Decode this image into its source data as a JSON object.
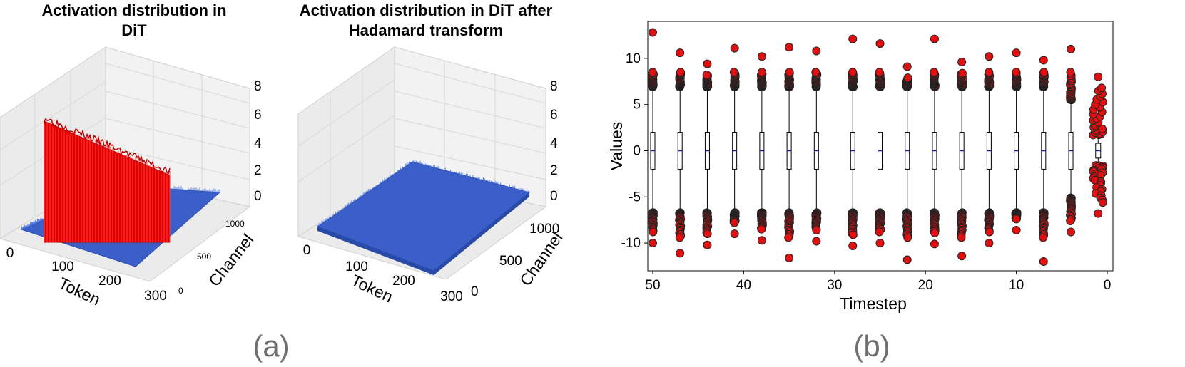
{
  "panel_a": {
    "label": "(a)",
    "left": {
      "title_line1": "Activation distribution in",
      "title_line2": "DiT",
      "token_label": "Token",
      "channel_label": "Channel",
      "token_ticks": [
        "0",
        "100",
        "200",
        "300"
      ],
      "channel_ticks": [
        "0",
        "500",
        "1000"
      ],
      "z_ticks": [
        "0",
        "2",
        "4",
        "6",
        "8"
      ]
    },
    "right": {
      "title_line1": "Activation distribution in DiT after",
      "title_line2": "Hadamard transform",
      "token_label": "Token",
      "channel_label": "Channel",
      "token_ticks": [
        "0",
        "100",
        "200",
        "300"
      ],
      "channel_ticks": [
        "0",
        "500",
        "1000"
      ],
      "z_ticks": [
        "0",
        "2",
        "4",
        "6",
        "8"
      ]
    }
  },
  "panel_b": {
    "label": "(b)"
  },
  "chart_data": [
    {
      "type": "surface3d",
      "title": "Activation distribution in DiT",
      "xlabel": "Token",
      "ylabel": "Channel",
      "zlabel": "",
      "xlim": [
        0,
        300
      ],
      "ylim": [
        0,
        1150
      ],
      "zlim": [
        0,
        8
      ],
      "base_level": 0.3,
      "outlier_band": {
        "token_range": [
          25,
          290
        ],
        "channel": 1000,
        "value": 5.5
      },
      "colors": {
        "base": "#3b5fc9",
        "outlier": "#e00000"
      }
    },
    {
      "type": "surface3d",
      "title": "Activation distribution in DiT after Hadamard transform",
      "xlabel": "Token",
      "ylabel": "Channel",
      "zlabel": "",
      "xlim": [
        0,
        300
      ],
      "ylim": [
        0,
        1150
      ],
      "zlim": [
        0,
        8
      ],
      "base_level": 0.9,
      "colors": {
        "base": "#3b5fc9"
      }
    },
    {
      "type": "box",
      "xlabel": "Timestep",
      "ylabel": "Values",
      "xlim": [
        50,
        0
      ],
      "ylim": [
        -13,
        14
      ],
      "x_ticks": [
        50,
        40,
        30,
        20,
        10,
        0
      ],
      "y_ticks": [
        -10,
        -5,
        0,
        5,
        10
      ],
      "boxes": [
        {
          "t": 50,
          "q1": -2,
          "median": 0,
          "q3": 2,
          "whislo": -6.6,
          "whishi": 6.8,
          "upper_outliers": [
            6.9,
            12.8
          ],
          "lower_outliers": [
            -6.7,
            -10
          ]
        },
        {
          "t": 47,
          "q1": -2,
          "median": 0,
          "q3": 2,
          "whislo": -6.6,
          "whishi": 6.8,
          "upper_outliers": [
            6.9,
            10.6
          ],
          "lower_outliers": [
            -6.7,
            -11.1
          ]
        },
        {
          "t": 44,
          "q1": -2,
          "median": 0,
          "q3": 2,
          "whislo": -6.6,
          "whishi": 6.8,
          "upper_outliers": [
            6.9,
            9.4
          ],
          "lower_outliers": [
            -6.7,
            -10.2
          ]
        },
        {
          "t": 41,
          "q1": -2,
          "median": 0,
          "q3": 2,
          "whislo": -6.6,
          "whishi": 6.8,
          "upper_outliers": [
            6.9,
            11.1
          ],
          "lower_outliers": [
            -6.7,
            -9.0
          ]
        },
        {
          "t": 38,
          "q1": -2,
          "median": 0,
          "q3": 2,
          "whislo": -6.6,
          "whishi": 6.8,
          "upper_outliers": [
            6.9,
            10.2
          ],
          "lower_outliers": [
            -6.7,
            -9.7
          ]
        },
        {
          "t": 35,
          "q1": -2,
          "median": 0,
          "q3": 2,
          "whislo": -6.6,
          "whishi": 6.8,
          "upper_outliers": [
            6.9,
            11.2
          ],
          "lower_outliers": [
            -6.7,
            -11.6
          ]
        },
        {
          "t": 32,
          "q1": -2,
          "median": 0,
          "q3": 2,
          "whislo": -6.6,
          "whishi": 6.8,
          "upper_outliers": [
            6.9,
            10.8
          ],
          "lower_outliers": [
            -6.7,
            -9.8
          ]
        },
        {
          "t": 28,
          "q1": -2,
          "median": 0,
          "q3": 2,
          "whislo": -6.6,
          "whishi": 6.8,
          "upper_outliers": [
            6.9,
            12.1
          ],
          "lower_outliers": [
            -6.7,
            -10.3
          ]
        },
        {
          "t": 25,
          "q1": -2,
          "median": 0,
          "q3": 2,
          "whislo": -6.6,
          "whishi": 6.8,
          "upper_outliers": [
            6.9,
            11.6
          ],
          "lower_outliers": [
            -6.7,
            -10.0
          ]
        },
        {
          "t": 22,
          "q1": -2,
          "median": 0,
          "q3": 2,
          "whislo": -6.6,
          "whishi": 6.8,
          "upper_outliers": [
            6.9,
            9.1
          ],
          "lower_outliers": [
            -6.7,
            -11.8
          ]
        },
        {
          "t": 19,
          "q1": -2,
          "median": 0,
          "q3": 2,
          "whislo": -6.6,
          "whishi": 6.8,
          "upper_outliers": [
            6.9,
            12.1
          ],
          "lower_outliers": [
            -6.7,
            -10.1
          ]
        },
        {
          "t": 16,
          "q1": -2,
          "median": 0,
          "q3": 2,
          "whislo": -6.6,
          "whishi": 6.8,
          "upper_outliers": [
            6.9,
            9.6
          ],
          "lower_outliers": [
            -6.7,
            -11.4
          ]
        },
        {
          "t": 13,
          "q1": -2,
          "median": 0,
          "q3": 2,
          "whislo": -6.6,
          "whishi": 6.8,
          "upper_outliers": [
            6.9,
            10.2
          ],
          "lower_outliers": [
            -6.7,
            -10.0
          ]
        },
        {
          "t": 10,
          "q1": -2,
          "median": 0,
          "q3": 2,
          "whislo": -6.6,
          "whishi": 6.8,
          "upper_outliers": [
            6.9,
            10.6
          ],
          "lower_outliers": [
            -6.7,
            -8.6
          ]
        },
        {
          "t": 7,
          "q1": -2,
          "median": 0,
          "q3": 2,
          "whislo": -6.6,
          "whishi": 6.8,
          "upper_outliers": [
            6.9,
            9.8
          ],
          "lower_outliers": [
            -6.7,
            -12.0
          ]
        },
        {
          "t": 4,
          "q1": -2,
          "median": 0,
          "q3": 2,
          "whislo": -5.0,
          "whishi": 5.4,
          "upper_outliers": [
            5.5,
            11.0
          ],
          "lower_outliers": [
            -5.1,
            -8.8
          ]
        },
        {
          "t": 1,
          "q1": -0.8,
          "median": 0,
          "q3": 0.8,
          "whislo": -1.5,
          "whishi": 1.6,
          "upper_outliers": [
            1.7,
            8.0
          ],
          "lower_outliers": [
            -1.6,
            -6.8
          ]
        }
      ],
      "colors": {
        "outlier_fill": "#e01010",
        "outlier_edge": "#222222",
        "box_edge": "#000000",
        "median": "#1a1aa0"
      }
    }
  ]
}
